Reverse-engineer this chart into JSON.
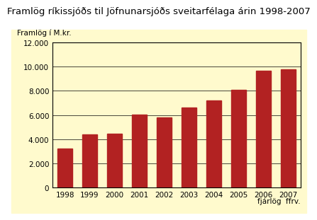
{
  "title": "Framlög ríkissjóðs til Jöfnunarsjóðs sveitarfélaga árin 1998-2007",
  "ylabel": "Framlög í M.kr.",
  "xlabel_note": "fjárlög  ffrv.",
  "years": [
    1998,
    1999,
    2000,
    2001,
    2002,
    2003,
    2004,
    2005,
    2006,
    2007
  ],
  "values": [
    3200,
    4400,
    4450,
    6050,
    5800,
    6600,
    7200,
    8100,
    9650,
    9800
  ],
  "bar_color": "#b22222",
  "fig_background": "#ffffff",
  "plot_bg_color": "#fffacd",
  "ylim": [
    0,
    12000
  ],
  "yticks": [
    0,
    2000,
    4000,
    6000,
    8000,
    10000,
    12000
  ],
  "title_fontsize": 9.5,
  "ylabel_fontsize": 7.5,
  "tick_fontsize": 7.5,
  "note_fontsize": 7.5
}
